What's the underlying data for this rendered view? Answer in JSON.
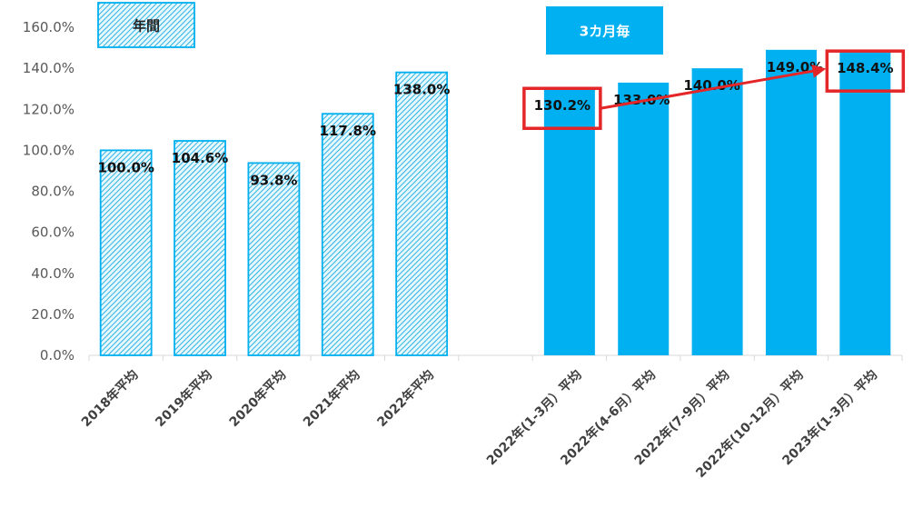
{
  "chart_data": {
    "type": "bar",
    "categories": [
      "2018年平均",
      "2019年平均",
      "2020年平均",
      "2021年平均",
      "2022年平均",
      "",
      "2022年(1-3月）平均",
      "2022年(4-6月）平均",
      "2022年(7-9月）平均",
      "2022年(10-12月）平均",
      "2023年(1-3月）平均"
    ],
    "values": [
      100.0,
      104.6,
      93.8,
      117.8,
      138.0,
      null,
      130.2,
      133.0,
      140.0,
      149.0,
      148.4
    ],
    "data_labels": [
      "100.0%",
      "104.6%",
      "93.8%",
      "117.8%",
      "138.0%",
      "",
      "130.2%",
      "133.0%",
      "140.0%",
      "149.0%",
      "148.4%"
    ],
    "bar_styles": [
      "hatched",
      "hatched",
      "hatched",
      "hatched",
      "hatched",
      "none",
      "solid",
      "solid",
      "solid",
      "solid",
      "solid"
    ],
    "ylim": [
      0,
      160
    ],
    "yticks": [
      "0.0%",
      "20.0%",
      "40.0%",
      "60.0%",
      "80.0%",
      "100.0%",
      "120.0%",
      "140.0%",
      "160.0%"
    ],
    "grid": false,
    "legend": [
      {
        "label": "年間",
        "style": "hatched"
      },
      {
        "label": "3カ月毎",
        "style": "solid"
      }
    ],
    "highlighted_labels": [
      "130.2%",
      "148.4%"
    ],
    "annotation": {
      "type": "arrow",
      "from": "130.2%",
      "to": "148.4%"
    },
    "colors": {
      "bar": "#00b0f0",
      "hatch_bg": "#e6f7fd",
      "highlight": "#e52629",
      "arrow": "#e52629",
      "legend_solid_text": "#ffffff",
      "legend_hatched_text": "#222222"
    }
  }
}
